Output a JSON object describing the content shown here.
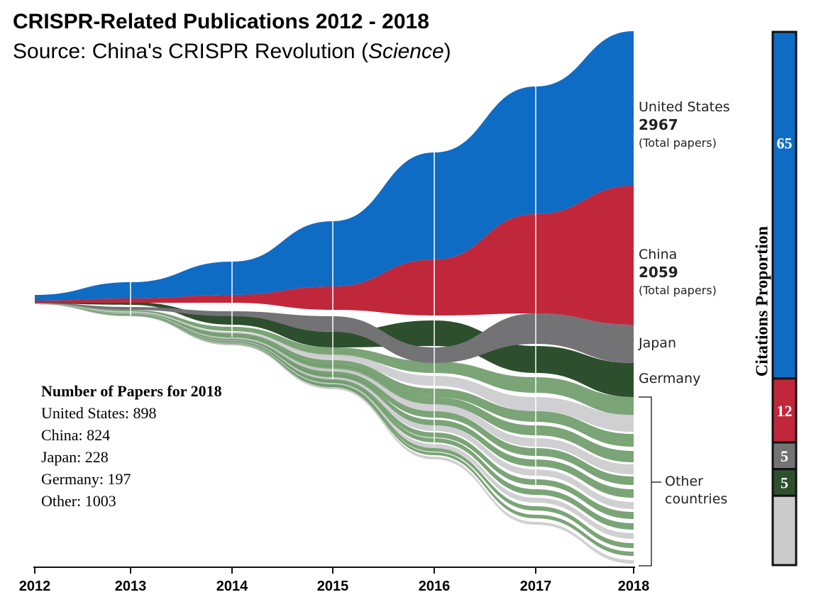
{
  "title": "CRISPR-Related Publications 2012 - 2018",
  "subtitle_prefix": "Source: China's CRISPR Revolution (",
  "subtitle_journal": "Science",
  "subtitle_suffix": ")",
  "labels": {
    "us_name": "United States",
    "us_total": "2967",
    "us_note": "(Total papers)",
    "china_name": "China",
    "china_total": "2059",
    "china_note": "(Total papers)",
    "japan": "Japan",
    "germany": "Germany",
    "other_line1": "Other",
    "other_line2": "countries"
  },
  "stats": {
    "heading": "Number of Papers for 2018",
    "lines": [
      "United States: 898",
      "China: 824",
      "Japan: 228",
      "Germany: 197",
      "Other: 1003"
    ]
  },
  "side_title": "Citations Proportion",
  "colors": {
    "us": "#0f6cc4",
    "china": "#c1273a",
    "japan": "#737376",
    "germany": "#2d4f2d",
    "other_green": "#6d9a68",
    "other_gray": "#cbcbcd"
  },
  "chart_data": [
    {
      "type": "area",
      "title": "CRISPR-Related Publications 2012 - 2018",
      "x": [
        "2012",
        "2013",
        "2014",
        "2015",
        "2016",
        "2017",
        "2018"
      ],
      "series": [
        {
          "name": "United States",
          "total": 2967,
          "value_2018": 898
        },
        {
          "name": "China",
          "total": 2059,
          "value_2018": 824
        },
        {
          "name": "Japan",
          "value_2018": 228
        },
        {
          "name": "Germany",
          "value_2018": 197
        },
        {
          "name": "Other countries",
          "value_2018": 1003
        }
      ]
    },
    {
      "type": "bar",
      "title": "Citations Proportion",
      "categories": [
        "United States",
        "China",
        "Japan",
        "Germany",
        "Other"
      ],
      "values": [
        65,
        12,
        5,
        5,
        13
      ],
      "labels": [
        "65",
        "12",
        "5",
        "5",
        ""
      ]
    }
  ]
}
